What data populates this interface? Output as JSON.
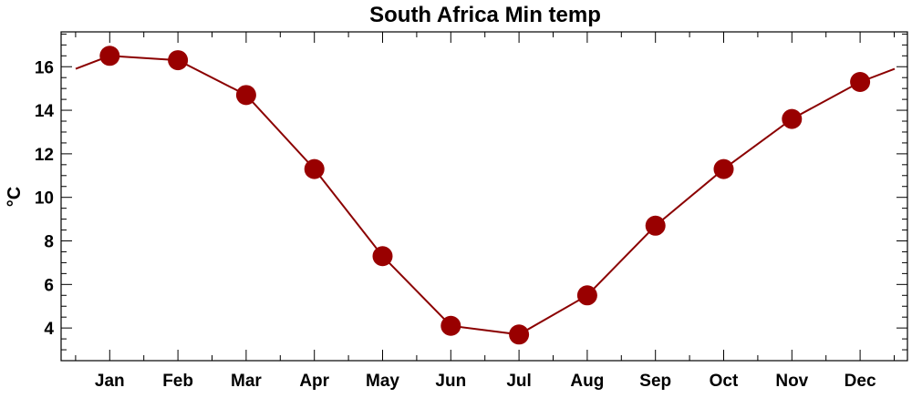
{
  "chart_data": {
    "type": "line",
    "title": "South Africa Min temp",
    "ylabel": "°C",
    "xlabel": "",
    "categories": [
      "Jan",
      "Feb",
      "Mar",
      "Apr",
      "May",
      "Jun",
      "Jul",
      "Aug",
      "Sep",
      "Oct",
      "Nov",
      "Dec"
    ],
    "values": [
      16.5,
      16.3,
      14.7,
      11.3,
      7.3,
      4.1,
      3.7,
      5.5,
      8.7,
      11.3,
      13.6,
      15.3
    ],
    "wrap_edges": {
      "left": 15.9,
      "right": 15.9
    },
    "ylim": [
      2.5,
      17.6
    ],
    "yticks": [
      4,
      6,
      8,
      10,
      12,
      14,
      16
    ],
    "grid": false,
    "colors": {
      "line": "#8b0000",
      "marker": "#990000"
    }
  }
}
